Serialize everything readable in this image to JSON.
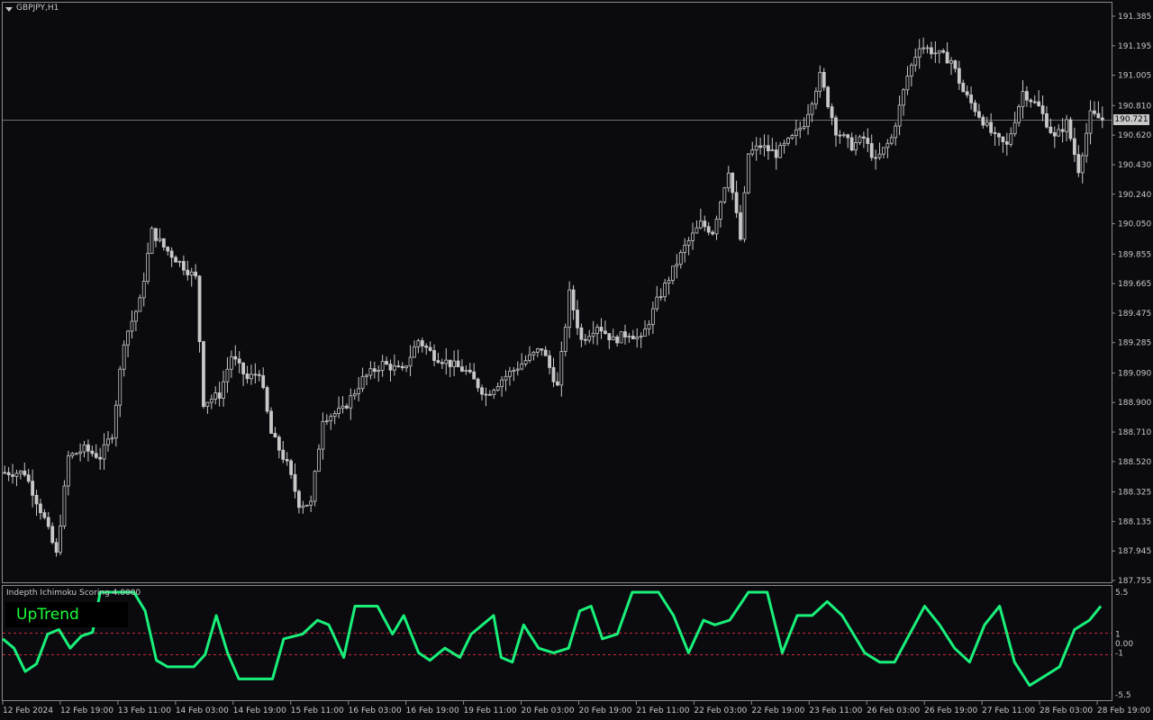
{
  "chart_header": {
    "symbol_label": "GBPJPY,H1"
  },
  "current_price": "190.721",
  "indicator": {
    "name": "Indepth Ichimoku Scoring 4.0000",
    "badge": "UpTrend",
    "levels": [
      "5.5",
      "1",
      "0.00",
      "-1",
      "-5.5"
    ]
  },
  "colors": {
    "background": "#0b0b0f",
    "candles": "#c8c8c8",
    "indicator_line": "#19f07a",
    "level_lines": "#c8283a",
    "badge_text": "#1aff3a",
    "grid_border": "#8a8a8a"
  },
  "chart_data": [
    {
      "type": "candlestick",
      "title": "GBPJPY,H1",
      "ylim": [
        187.755,
        191.385
      ],
      "y_ticks": [
        "191.385",
        "191.195",
        "191.005",
        "190.810",
        "190.620",
        "190.430",
        "190.240",
        "190.050",
        "189.855",
        "189.665",
        "189.475",
        "189.285",
        "189.090",
        "188.900",
        "188.710",
        "188.520",
        "188.325",
        "188.135",
        "187.945",
        "187.755"
      ],
      "x_ticks": [
        "12 Feb 2024",
        "12 Feb 19:00",
        "13 Feb 11:00",
        "14 Feb 03:00",
        "14 Feb 19:00",
        "15 Feb 11:00",
        "16 Feb 03:00",
        "16 Feb 19:00",
        "19 Feb 11:00",
        "20 Feb 03:00",
        "20 Feb 19:00",
        "21 Feb 11:00",
        "22 Feb 03:00",
        "22 Feb 19:00",
        "23 Feb 11:00",
        "26 Feb 03:00",
        "26 Feb 19:00",
        "27 Feb 11:00",
        "28 Feb 03:00",
        "28 Feb 19:00"
      ],
      "close_path": [
        [
          0,
          188.45
        ],
        [
          5,
          188.45
        ],
        [
          10,
          188.15
        ],
        [
          13,
          187.92
        ],
        [
          16,
          188.55
        ],
        [
          20,
          188.6
        ],
        [
          24,
          188.55
        ],
        [
          27,
          188.7
        ],
        [
          30,
          189.3
        ],
        [
          34,
          189.55
        ],
        [
          37,
          190.0
        ],
        [
          40,
          189.9
        ],
        [
          44,
          189.8
        ],
        [
          48,
          189.7
        ],
        [
          50,
          188.9
        ],
        [
          54,
          188.95
        ],
        [
          57,
          189.2
        ],
        [
          61,
          189.05
        ],
        [
          64,
          189.1
        ],
        [
          67,
          188.7
        ],
        [
          71,
          188.5
        ],
        [
          74,
          188.25
        ],
        [
          77,
          188.25
        ],
        [
          80,
          188.8
        ],
        [
          85,
          188.85
        ],
        [
          90,
          189.05
        ],
        [
          95,
          189.15
        ],
        [
          100,
          189.1
        ],
        [
          104,
          189.3
        ],
        [
          108,
          189.2
        ],
        [
          112,
          189.15
        ],
        [
          116,
          189.1
        ],
        [
          121,
          188.95
        ],
        [
          125,
          189.05
        ],
        [
          130,
          189.15
        ],
        [
          135,
          189.25
        ],
        [
          139,
          189.0
        ],
        [
          142,
          189.6
        ],
        [
          145,
          189.3
        ],
        [
          149,
          189.4
        ],
        [
          153,
          189.3
        ],
        [
          157,
          189.35
        ],
        [
          160,
          189.3
        ],
        [
          164,
          189.55
        ],
        [
          168,
          189.75
        ],
        [
          171,
          189.9
        ],
        [
          175,
          190.05
        ],
        [
          178,
          190.0
        ],
        [
          182,
          190.4
        ],
        [
          185,
          189.95
        ],
        [
          187,
          190.5
        ],
        [
          190,
          190.55
        ],
        [
          194,
          190.5
        ],
        [
          198,
          190.6
        ],
        [
          201,
          190.7
        ],
        [
          205,
          191.0
        ],
        [
          209,
          190.65
        ],
        [
          213,
          190.55
        ],
        [
          216,
          190.6
        ],
        [
          219,
          190.45
        ],
        [
          223,
          190.6
        ],
        [
          227,
          191.0
        ],
        [
          230,
          191.2
        ],
        [
          234,
          191.15
        ],
        [
          238,
          191.1
        ],
        [
          241,
          190.9
        ],
        [
          245,
          190.75
        ],
        [
          249,
          190.6
        ],
        [
          252,
          190.55
        ],
        [
          256,
          190.9
        ],
        [
          260,
          190.8
        ],
        [
          264,
          190.6
        ],
        [
          267,
          190.7
        ],
        [
          270,
          190.4
        ],
        [
          273,
          190.75
        ],
        [
          276,
          190.72
        ]
      ]
    },
    {
      "type": "line",
      "title": "Indepth Ichimoku Scoring 4.0000",
      "ylim": [
        -5.5,
        5.5
      ],
      "y_ticks": [
        "5.5",
        "1",
        "0.00",
        "-1",
        "-5.5"
      ],
      "reference_lines": [
        1,
        -1
      ],
      "path": [
        [
          0,
          0.5
        ],
        [
          3,
          -0.5
        ],
        [
          6,
          -3.0
        ],
        [
          9,
          -2.2
        ],
        [
          12,
          1.0
        ],
        [
          15,
          1.5
        ],
        [
          18,
          -0.5
        ],
        [
          21,
          0.8
        ],
        [
          24,
          1.2
        ],
        [
          26,
          5.5
        ],
        [
          35,
          5.5
        ],
        [
          38,
          3.5
        ],
        [
          41,
          -1.8
        ],
        [
          44,
          -2.5
        ],
        [
          51,
          -2.5
        ],
        [
          54,
          -1.2
        ],
        [
          57,
          3.0
        ],
        [
          60,
          -1.0
        ],
        [
          63,
          -3.8
        ],
        [
          72,
          -3.8
        ],
        [
          75,
          0.5
        ],
        [
          80,
          1.0
        ],
        [
          84,
          2.5
        ],
        [
          87,
          2.0
        ],
        [
          91,
          -1.5
        ],
        [
          94,
          4.0
        ],
        [
          100,
          4.0
        ],
        [
          104,
          1.0
        ],
        [
          107,
          3.0
        ],
        [
          111,
          -1.0
        ],
        [
          114,
          -1.8
        ],
        [
          118,
          -0.5
        ],
        [
          122,
          -1.5
        ],
        [
          125,
          1.0
        ],
        [
          128,
          2.0
        ],
        [
          131,
          3.0
        ],
        [
          133,
          -1.5
        ],
        [
          136,
          -2.0
        ],
        [
          139,
          2.0
        ],
        [
          143,
          -0.5
        ],
        [
          147,
          -1.0
        ],
        [
          151,
          -0.5
        ],
        [
          154,
          3.5
        ],
        [
          157,
          4.0
        ],
        [
          160,
          0.5
        ],
        [
          164,
          1.0
        ],
        [
          168,
          5.5
        ],
        [
          175,
          5.5
        ],
        [
          179,
          3.0
        ],
        [
          183,
          -1.0
        ],
        [
          187,
          2.5
        ],
        [
          190,
          2.0
        ],
        [
          194,
          2.5
        ],
        [
          199,
          5.5
        ],
        [
          204,
          5.5
        ],
        [
          208,
          -1.0
        ],
        [
          212,
          3.0
        ],
        [
          216,
          3.0
        ],
        [
          220,
          4.5
        ],
        [
          224,
          3.0
        ],
        [
          227,
          1.0
        ],
        [
          230,
          -1.0
        ],
        [
          234,
          -2.0
        ],
        [
          238,
          -2.0
        ],
        [
          242,
          1.0
        ],
        [
          246,
          4.0
        ],
        [
          250,
          2.0
        ],
        [
          254,
          -0.5
        ],
        [
          258,
          -2.0
        ],
        [
          262,
          2.0
        ],
        [
          266,
          4.0
        ],
        [
          270,
          -2.0
        ],
        [
          274,
          -4.5
        ],
        [
          278,
          -3.5
        ],
        [
          282,
          -2.5
        ],
        [
          286,
          1.5
        ],
        [
          290,
          2.5
        ],
        [
          293,
          4.0
        ]
      ]
    }
  ]
}
